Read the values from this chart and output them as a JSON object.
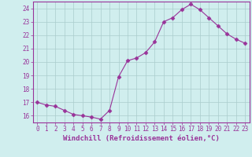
{
  "x": [
    0,
    1,
    2,
    3,
    4,
    5,
    6,
    7,
    8,
    9,
    10,
    11,
    12,
    13,
    14,
    15,
    16,
    17,
    18,
    19,
    20,
    21,
    22,
    23
  ],
  "y": [
    17.0,
    16.8,
    16.7,
    16.4,
    16.1,
    16.0,
    15.9,
    15.75,
    16.4,
    18.9,
    20.1,
    20.3,
    20.7,
    21.5,
    23.0,
    23.3,
    23.9,
    24.3,
    23.9,
    23.3,
    22.7,
    22.1,
    21.7,
    21.4
  ],
  "line_color": "#993399",
  "marker": "D",
  "marker_size": 2.5,
  "bg_color": "#d0eeee",
  "grid_color": "#aacccc",
  "xlabel": "Windchill (Refroidissement éolien,°C)",
  "xlim": [
    -0.5,
    23.5
  ],
  "ylim": [
    15.5,
    24.5
  ],
  "yticks": [
    16,
    17,
    18,
    19,
    20,
    21,
    22,
    23,
    24
  ],
  "xticks": [
    0,
    1,
    2,
    3,
    4,
    5,
    6,
    7,
    8,
    9,
    10,
    11,
    12,
    13,
    14,
    15,
    16,
    17,
    18,
    19,
    20,
    21,
    22,
    23
  ],
  "tick_color": "#993399",
  "label_color": "#993399",
  "font_size": 5.5,
  "xlabel_font_size": 6.5
}
